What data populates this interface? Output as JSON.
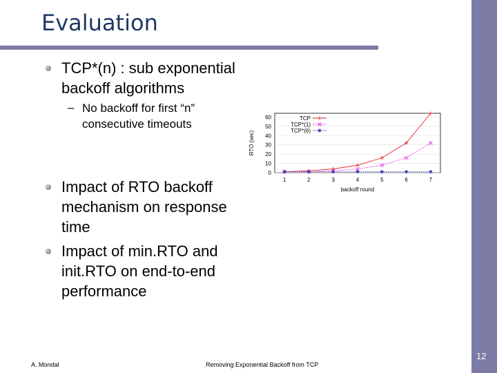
{
  "slide": {
    "title": "Evaluation",
    "bullets": [
      {
        "lines": [
          "TCP*(n) : sub exponential",
          "backoff algorithms"
        ]
      },
      {
        "lines": [
          "Impact of RTO backoff",
          "mechanism on  response",
          "time"
        ]
      },
      {
        "lines": [
          "Impact of min.RTO and",
          "init.RTO on end-to-end",
          "performance"
        ]
      }
    ],
    "sub_bullet": {
      "dash": "–",
      "lines": [
        "No backoff for first “n”",
        "consecutive timeouts"
      ]
    },
    "footer": {
      "author": "A. Mondal",
      "center": "Removing Exponential Backoff from TCP",
      "page": "12"
    },
    "colors": {
      "accent_bar": "#7b7ba6",
      "title": "#1f3864"
    }
  },
  "chart_data": {
    "type": "line",
    "title": "",
    "xlabel": "backoff round",
    "ylabel": "RTO (sec)",
    "x": [
      1,
      2,
      3,
      4,
      5,
      6,
      7
    ],
    "xlim": [
      0.6,
      7.4
    ],
    "ylim": [
      0,
      64
    ],
    "xticks": [
      "1",
      "2",
      "3",
      "4",
      "5",
      "6",
      "7"
    ],
    "yticks": [
      "0",
      "10",
      "20",
      "30",
      "40",
      "50",
      "60"
    ],
    "legend_position": "top-left",
    "series": [
      {
        "name": "TCP",
        "values": [
          1,
          2,
          4,
          8,
          16,
          32,
          64
        ],
        "color": "#e8242c",
        "marker": "plus"
      },
      {
        "name": "TCP*(1)",
        "values": [
          1,
          1,
          2,
          4,
          8,
          16,
          32
        ],
        "color": "#e83ce0",
        "marker": "x"
      },
      {
        "name": "TCP*(6)",
        "values": [
          1,
          1,
          1,
          1,
          1,
          1,
          1
        ],
        "color": "#2d3ab8",
        "marker": "star"
      }
    ]
  }
}
